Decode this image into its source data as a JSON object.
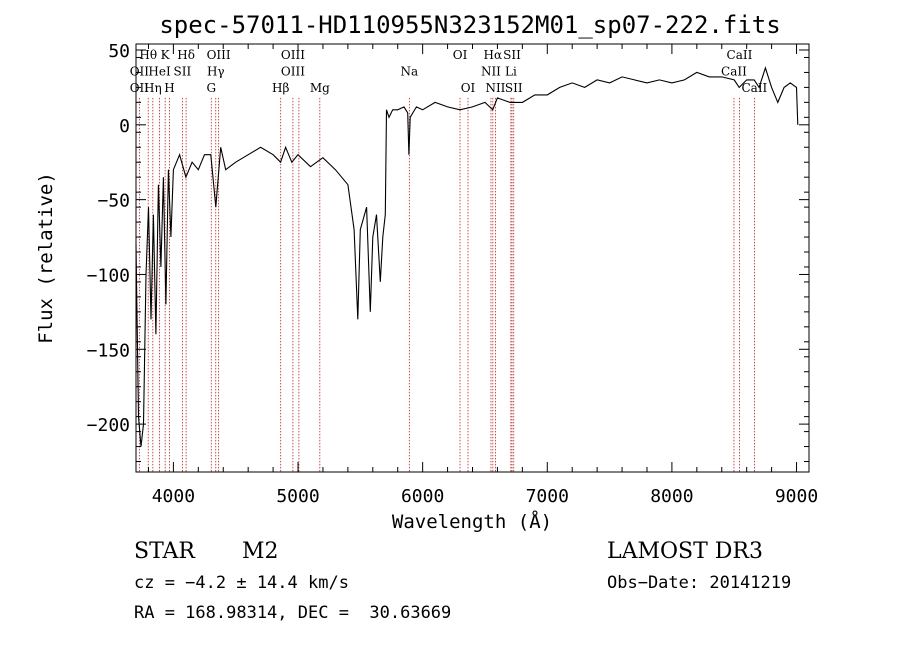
{
  "chart_data": {
    "type": "line",
    "title": "spec-57011-HD110955N323152M01_sp07-222.fits",
    "xlabel": "Wavelength (Å)",
    "ylabel": "Flux (relative)",
    "xlim": [
      3700,
      9100
    ],
    "ylim": [
      -232,
      54
    ],
    "xticks": [
      4000,
      5000,
      6000,
      7000,
      8000,
      9000
    ],
    "yticks": [
      50,
      0,
      -50,
      -100,
      -150,
      -200
    ],
    "xtick_labels": [
      "4000",
      "5000",
      "6000",
      "7000",
      "8000",
      "9000"
    ],
    "ytick_labels": [
      "50",
      "0",
      "−50",
      "−100",
      "−150",
      "−200"
    ],
    "grid": false,
    "series": [
      {
        "color": "#000000",
        "x": [
          3700,
          3720,
          3740,
          3760,
          3780,
          3800,
          3820,
          3840,
          3860,
          3880,
          3900,
          3920,
          3940,
          3960,
          3980,
          4000,
          4050,
          4100,
          4150,
          4200,
          4250,
          4300,
          4340,
          4380,
          4420,
          4500,
          4600,
          4700,
          4800,
          4860,
          4900,
          4950,
          5000,
          5100,
          5200,
          5300,
          5400,
          5450,
          5480,
          5500,
          5550,
          5580,
          5600,
          5630,
          5660,
          5680,
          5700,
          5710,
          5730,
          5760,
          5800,
          5850,
          5880,
          5890,
          5900,
          5950,
          6000,
          6100,
          6200,
          6300,
          6400,
          6500,
          6562,
          6600,
          6700,
          6800,
          6900,
          7000,
          7100,
          7200,
          7300,
          7400,
          7500,
          7600,
          7700,
          7800,
          7900,
          8000,
          8100,
          8200,
          8300,
          8400,
          8500,
          8540,
          8600,
          8660,
          8700,
          8750,
          8800,
          8850,
          8900,
          8950,
          9000,
          9010
        ],
        "y": [
          -80,
          -195,
          -215,
          -200,
          -100,
          -55,
          -130,
          -60,
          -140,
          -40,
          -95,
          -35,
          -120,
          -30,
          -75,
          -30,
          -20,
          -35,
          -25,
          -30,
          -20,
          -20,
          -55,
          -15,
          -30,
          -25,
          -20,
          -15,
          -20,
          -25,
          -15,
          -25,
          -20,
          -28,
          -22,
          -30,
          -40,
          -70,
          -130,
          -70,
          -55,
          -125,
          -75,
          -60,
          -105,
          -75,
          -60,
          10,
          5,
          10,
          10,
          12,
          8,
          -20,
          5,
          12,
          10,
          15,
          12,
          10,
          12,
          15,
          10,
          18,
          15,
          15,
          20,
          20,
          25,
          28,
          25,
          30,
          28,
          32,
          30,
          28,
          30,
          28,
          30,
          35,
          32,
          32,
          30,
          25,
          30,
          30,
          25,
          38,
          25,
          15,
          25,
          28,
          25,
          0
        ]
      }
    ],
    "line_labels": [
      {
        "text": "Hθ",
        "x": 3798,
        "y": 44
      },
      {
        "text": "K",
        "x": 3934,
        "y": 44
      },
      {
        "text": "Hδ",
        "x": 4102,
        "y": 44
      },
      {
        "text": "OII",
        "x": 3727,
        "y": 33
      },
      {
        "text": "HeI",
        "x": 3889,
        "y": 33
      },
      {
        "text": "SII",
        "x": 4072,
        "y": 33
      },
      {
        "text": "OII",
        "x": 3727,
        "y": 22
      },
      {
        "text": "Hη",
        "x": 3835,
        "y": 22
      },
      {
        "text": "H",
        "x": 3969,
        "y": 22
      },
      {
        "text": "OIII",
        "x": 4363,
        "y": 44
      },
      {
        "text": "Hγ",
        "x": 4340,
        "y": 33
      },
      {
        "text": "G",
        "x": 4304,
        "y": 22
      },
      {
        "text": "OIII",
        "x": 4959,
        "y": 44
      },
      {
        "text": "OIII",
        "x": 4959,
        "y": 33
      },
      {
        "text": "Hβ",
        "x": 4861,
        "y": 22
      },
      {
        "text": "Mg",
        "x": 5175,
        "y": 22
      },
      {
        "text": "Na",
        "x": 5893,
        "y": 33
      },
      {
        "text": "OI",
        "x": 6300,
        "y": 44
      },
      {
        "text": "OI",
        "x": 6364,
        "y": 22
      },
      {
        "text": "Hα",
        "x": 6563,
        "y": 44
      },
      {
        "text": "SII",
        "x": 6717,
        "y": 44
      },
      {
        "text": "NII",
        "x": 6548,
        "y": 33
      },
      {
        "text": "Li",
        "x": 6708,
        "y": 33
      },
      {
        "text": "NII",
        "x": 6584,
        "y": 22
      },
      {
        "text": "SII",
        "x": 6731,
        "y": 22
      },
      {
        "text": "CaII",
        "x": 8542,
        "y": 44
      },
      {
        "text": "CaII",
        "x": 8498,
        "y": 33
      },
      {
        "text": "CaII",
        "x": 8662,
        "y": 22
      }
    ],
    "reference_lines": [
      3727,
      3798,
      3835,
      3889,
      3934,
      3969,
      4072,
      4102,
      4304,
      4340,
      4363,
      4861,
      4959,
      5007,
      5175,
      5893,
      6300,
      6364,
      6548,
      6563,
      6584,
      6708,
      6717,
      6731,
      8498,
      8542,
      8662
    ]
  },
  "footer": {
    "object_type": "STAR",
    "subclass": "M2",
    "survey": "LAMOST DR3",
    "cz": "cz = −4.2 ± 14.4 km/s",
    "obs_date": "Obs−Date: 20141219",
    "coords": "RA = 168.98314, DEC =  30.63669"
  },
  "colors": {
    "spectrum": "#000000",
    "reference_line": "#b22222",
    "axes": "#000000"
  }
}
